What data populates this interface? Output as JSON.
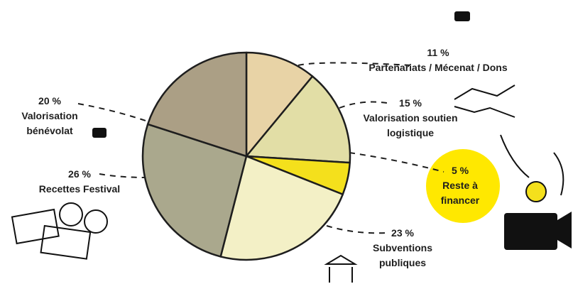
{
  "chart_data": {
    "type": "pie",
    "categories": [
      "Partenariats / Mécenat / Dons",
      "Valorisation soutien logistique",
      "Reste à financer",
      "Subventions publiques",
      "Recettes Festival",
      "Valorisation bénévolat"
    ],
    "values": [
      11,
      15,
      5,
      23,
      26,
      20
    ],
    "value_labels": [
      "11 %",
      "15 %",
      "5 %",
      "23 %",
      "26 %",
      "20 %"
    ],
    "colors": [
      "#e8d3a6",
      "#e2dea6",
      "#f4e01c",
      "#f3f0c6",
      "#aaa88d",
      "#ab9f85"
    ]
  }
}
